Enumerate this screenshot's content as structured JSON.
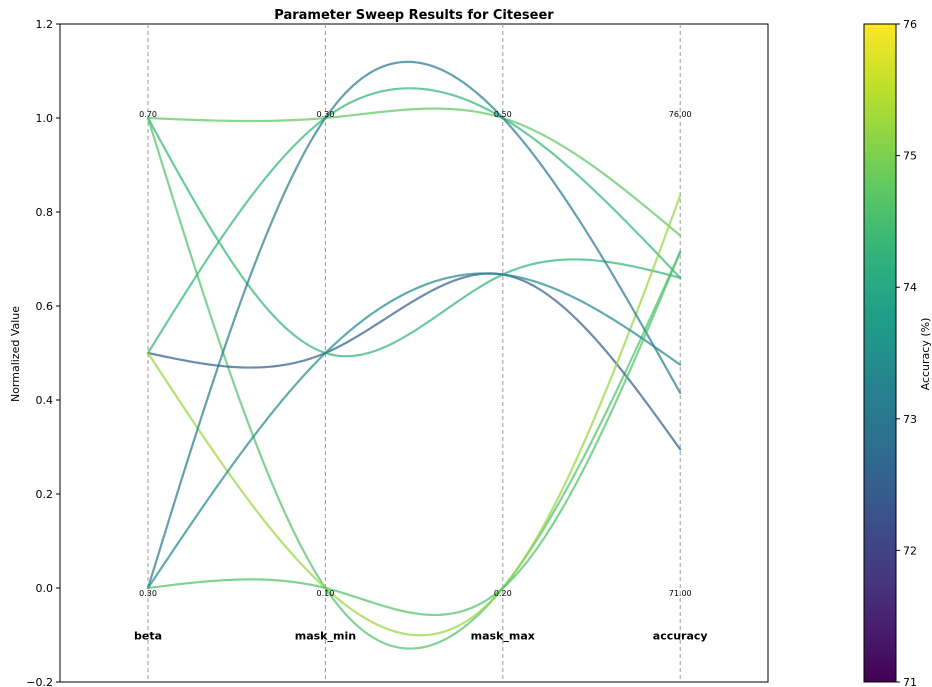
{
  "chart_data": {
    "type": "parallel-coordinates",
    "title": "Parameter Sweep Results for Citeseer",
    "ylabel": "Normalized Value",
    "ylim": [
      -0.2,
      1.2
    ],
    "yticks": [
      -0.2,
      0.0,
      0.2,
      0.4,
      0.6,
      0.8,
      1.0,
      1.2
    ],
    "grid": false,
    "axes": [
      {
        "name": "beta",
        "x": 0,
        "top_label": "0.70",
        "bottom_label": "0.30"
      },
      {
        "name": "mask_min",
        "x": 1,
        "top_label": "0.30",
        "bottom_label": "0.10"
      },
      {
        "name": "mask_max",
        "x": 2,
        "top_label": "0.50",
        "bottom_label": "0.20"
      },
      {
        "name": "accuracy",
        "x": 3,
        "top_label": "76.00",
        "bottom_label": "71.00"
      }
    ],
    "series": [
      {
        "values": [
          1.0,
          1.0,
          1.0,
          0.75
        ],
        "accuracy": 74.75
      },
      {
        "values": [
          1.0,
          0.5,
          0.667,
          0.66
        ],
        "accuracy": 74.3
      },
      {
        "values": [
          1.0,
          0.0,
          0.0,
          0.715
        ],
        "accuracy": 74.6
      },
      {
        "values": [
          0.5,
          1.0,
          1.0,
          0.66
        ],
        "accuracy": 74.3
      },
      {
        "values": [
          0.5,
          0.5,
          0.667,
          0.295
        ],
        "accuracy": 72.5
      },
      {
        "values": [
          0.5,
          0.0,
          0.0,
          0.835
        ],
        "accuracy": 75.2
      },
      {
        "values": [
          0.0,
          1.0,
          1.0,
          0.415
        ],
        "accuracy": 73.1
      },
      {
        "values": [
          0.0,
          0.5,
          0.667,
          0.475
        ],
        "accuracy": 73.4
      },
      {
        "values": [
          0.0,
          0.0,
          0.0,
          0.715
        ],
        "accuracy": 74.6
      }
    ],
    "colorbar": {
      "label": "Accuracy (%)",
      "range": [
        71,
        76
      ],
      "ticks": [
        71,
        72,
        73,
        74,
        75,
        76
      ],
      "colormap": "viridis"
    }
  }
}
